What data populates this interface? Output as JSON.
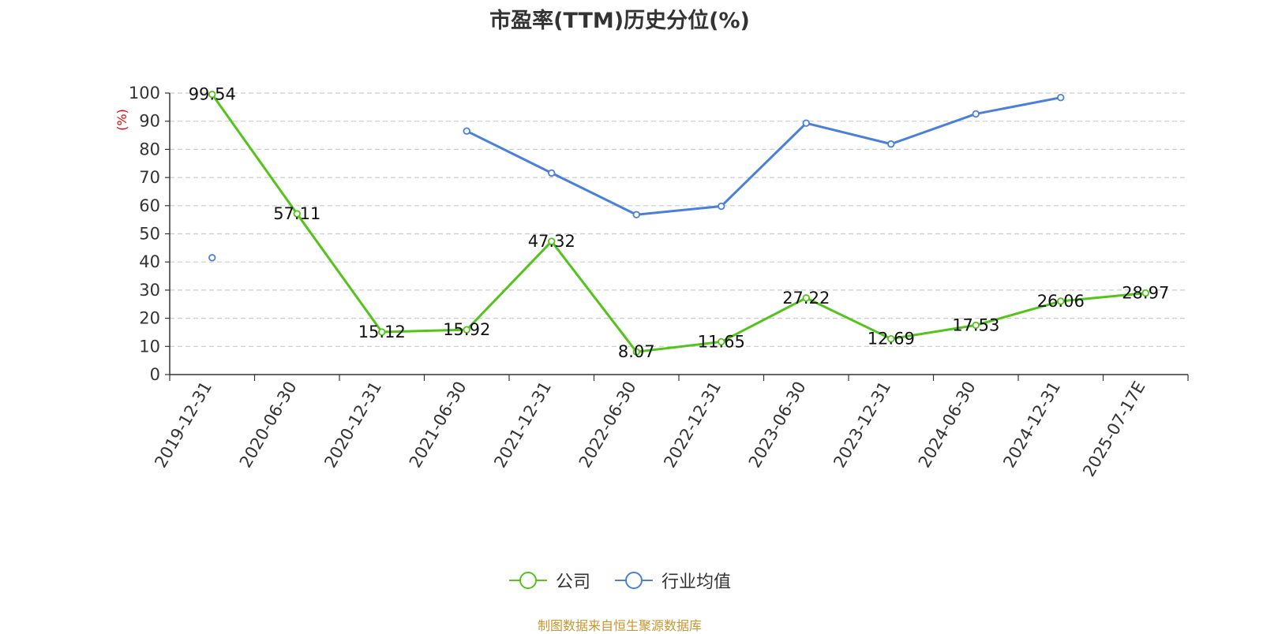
{
  "chart_data": {
    "type": "line",
    "title": "市盈率(TTM)历史分位(%)",
    "ylabel": "(%)",
    "ylim": [
      0,
      100
    ],
    "yticks": [
      0,
      10,
      20,
      30,
      40,
      50,
      60,
      70,
      80,
      90,
      100
    ],
    "grid": true,
    "legend_position": "bottom-center",
    "categories": [
      "2019-12-31",
      "2020-06-30",
      "2020-12-31",
      "2021-06-30",
      "2021-12-31",
      "2022-06-30",
      "2022-12-31",
      "2023-06-30",
      "2023-12-31",
      "2024-06-30",
      "2024-12-31",
      "2025-07-17E"
    ],
    "series": [
      {
        "name": "公司",
        "color": "#52c41a",
        "show_labels": true,
        "values": [
          99.54,
          57.11,
          15.12,
          15.92,
          47.32,
          8.07,
          11.65,
          27.22,
          12.69,
          17.53,
          26.06,
          28.97
        ]
      },
      {
        "name": "行业均值",
        "color": "#4a7fdc",
        "show_labels": false,
        "values": [
          41.5,
          null,
          null,
          86.5,
          71.6,
          56.8,
          59.8,
          89.3,
          81.9,
          92.6,
          98.4,
          null
        ]
      }
    ]
  },
  "source_note": "制图数据来自恒生聚源数据库"
}
